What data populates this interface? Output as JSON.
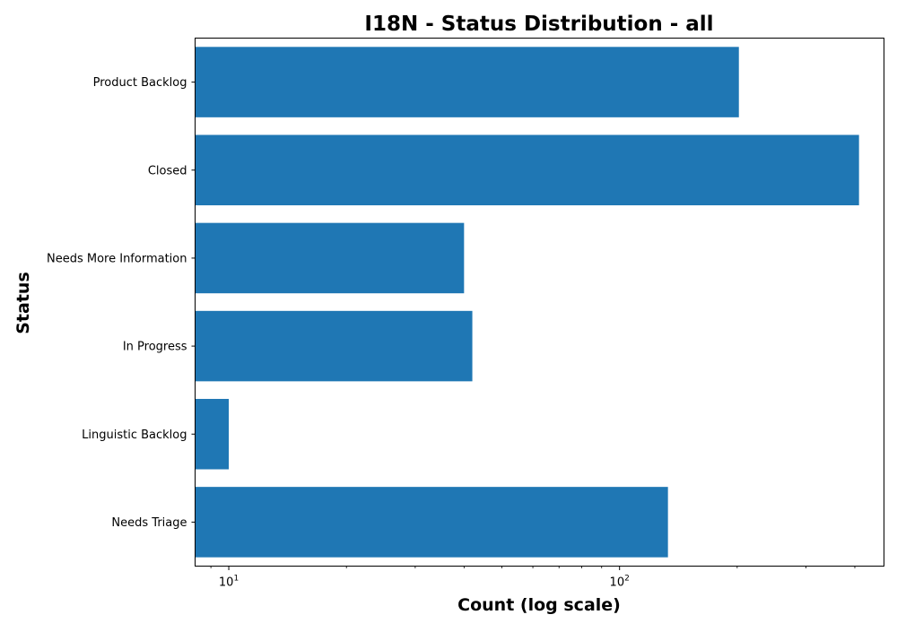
{
  "chart_data": {
    "type": "bar",
    "orientation": "horizontal",
    "title": "I18N - Status Distribution - all",
    "xlabel": "Count (log scale)",
    "ylabel": "Status",
    "x_scale": "log",
    "xlim": [
      8.2,
      475
    ],
    "x_ticks": [
      {
        "value": 10,
        "base": "10",
        "exponent": "1"
      },
      {
        "value": 100,
        "base": "10",
        "exponent": "2"
      }
    ],
    "categories": [
      "Product Backlog",
      "Closed",
      "Needs More Information",
      "In Progress",
      "Linguistic Backlog",
      "Needs Triage"
    ],
    "values": [
      202,
      410,
      40,
      42,
      10,
      133
    ],
    "bar_color": "#1f77b4",
    "grid": false,
    "legend": "none"
  }
}
